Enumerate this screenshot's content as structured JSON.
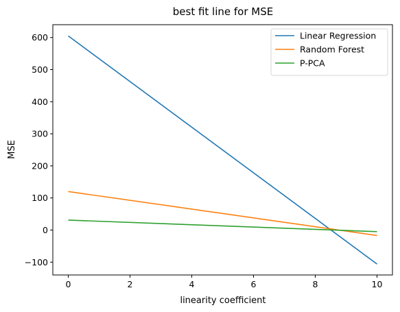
{
  "chart_data": {
    "type": "line",
    "title": "best fit line for MSE",
    "xlabel": "linearity coefficient",
    "ylabel": "MSE",
    "xlim": [
      -0.5,
      10.5
    ],
    "ylim": [
      -140,
      640
    ],
    "xticks": [
      0,
      2,
      4,
      6,
      8,
      10
    ],
    "yticks": [
      -100,
      0,
      100,
      200,
      300,
      400,
      500,
      600
    ],
    "xtick_labels": [
      "0",
      "2",
      "4",
      "6",
      "8",
      "10"
    ],
    "ytick_labels": [
      "−100",
      "0",
      "100",
      "200",
      "300",
      "400",
      "500",
      "600"
    ],
    "grid": false,
    "legend_position": "top-right",
    "series": [
      {
        "name": "Linear Regression",
        "color": "#1f77b4",
        "x": [
          0,
          10
        ],
        "y": [
          605,
          -106
        ]
      },
      {
        "name": "Random Forest",
        "color": "#ff7f0e",
        "x": [
          0,
          10
        ],
        "y": [
          120,
          -17
        ]
      },
      {
        "name": "P-PCA",
        "color": "#2ca02c",
        "x": [
          0,
          10
        ],
        "y": [
          31,
          -5
        ]
      }
    ]
  }
}
